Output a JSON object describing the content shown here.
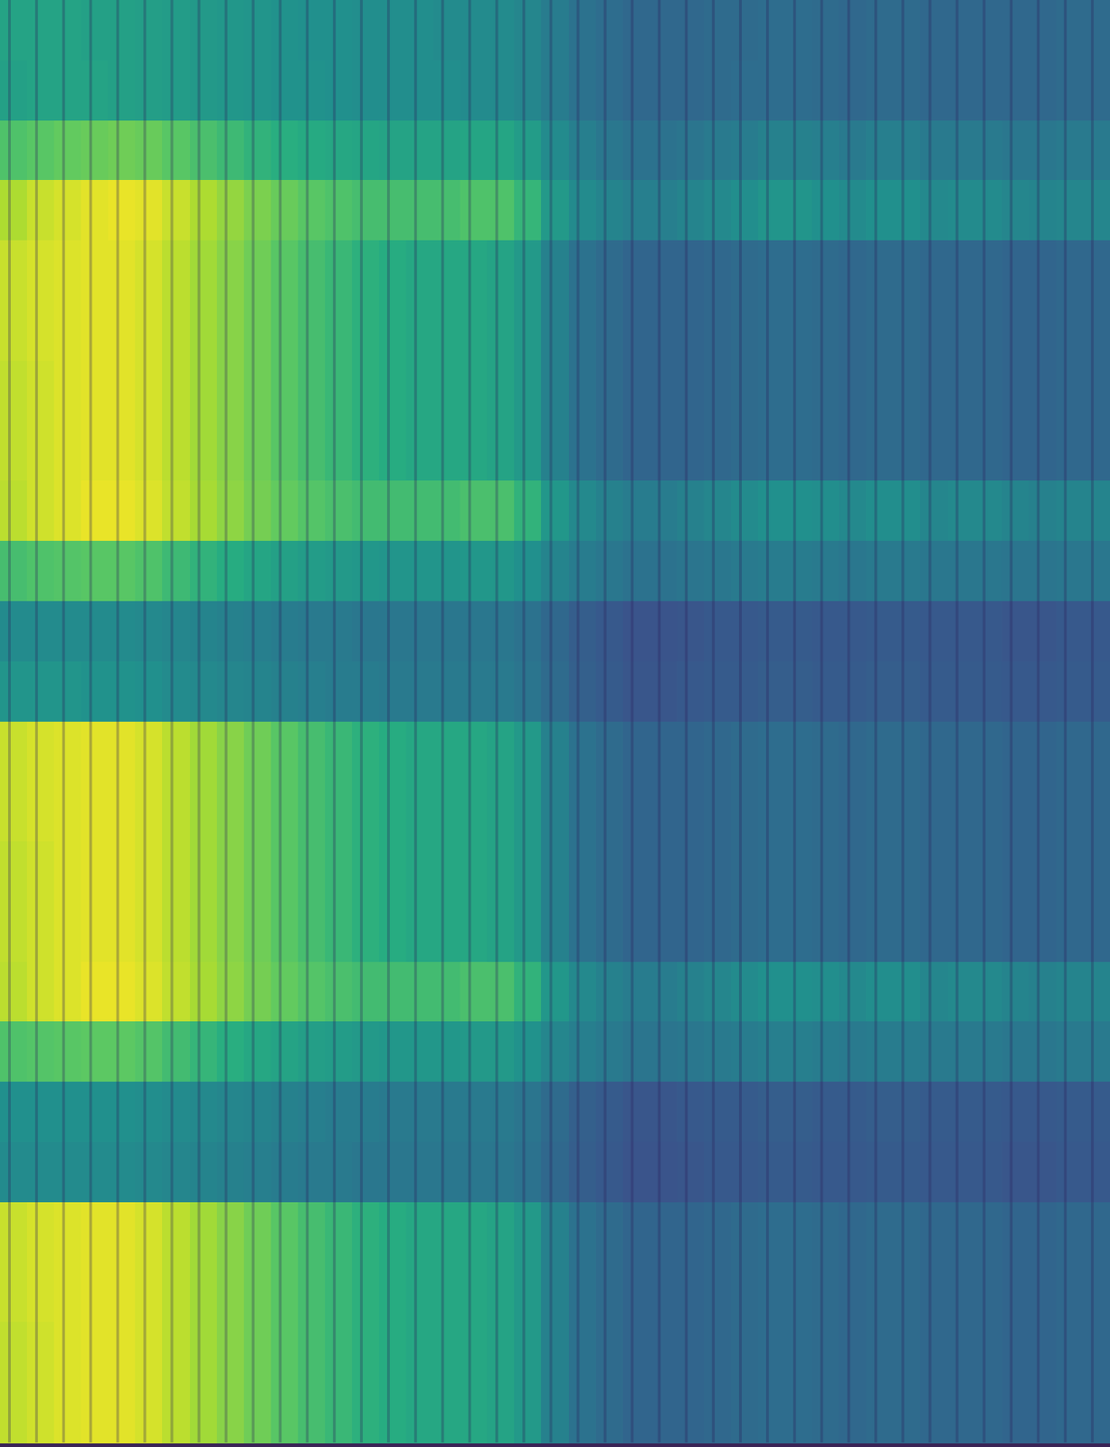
{
  "chart_data": {
    "type": "heatmap",
    "color": "viridis",
    "color_range": [
      0,
      100
    ],
    "tick_labels": false,
    "grid": false,
    "cells": [
      [
        58,
        58,
        58,
        57,
        57,
        56,
        55,
        54,
        53,
        52,
        51,
        50,
        50,
        49,
        49,
        49,
        48,
        48,
        48,
        46,
        42,
        38,
        36,
        34,
        34,
        34,
        35,
        35,
        36,
        36,
        35,
        34,
        35,
        35,
        34,
        34,
        34,
        34,
        34,
        35,
        35
      ],
      [
        57,
        58,
        58,
        58,
        57,
        56,
        55,
        54,
        53,
        52,
        51,
        51,
        50,
        49,
        49,
        49,
        49,
        48,
        48,
        46,
        42,
        38,
        36,
        34,
        34,
        34,
        35,
        36,
        36,
        36,
        35,
        34,
        35,
        35,
        34,
        34,
        34,
        34,
        34,
        35,
        35
      ],
      [
        72,
        74,
        76,
        77,
        78,
        77,
        74,
        71,
        68,
        65,
        63,
        61,
        60,
        59,
        58,
        58,
        58,
        59,
        59,
        55,
        48,
        43,
        40,
        38,
        38,
        39,
        41,
        42,
        44,
        44,
        43,
        41,
        43,
        43,
        41,
        41,
        41,
        40,
        40,
        41,
        41
      ],
      [
        88,
        92,
        94,
        96,
        97,
        96,
        92,
        88,
        84,
        80,
        77,
        74,
        72,
        70,
        70,
        70,
        70,
        72,
        72,
        66,
        54,
        48,
        45,
        43,
        43,
        45,
        47,
        49,
        52,
        52,
        50,
        48,
        50,
        50,
        47,
        48,
        48,
        46,
        45,
        46,
        46
      ],
      [
        92,
        94,
        95,
        96,
        96,
        94,
        90,
        86,
        82,
        78,
        74,
        70,
        67,
        64,
        62,
        60,
        60,
        60,
        58,
        54,
        44,
        38,
        35,
        33,
        33,
        33,
        34,
        35,
        36,
        36,
        35,
        34,
        35,
        35,
        34,
        34,
        34,
        33,
        33,
        34,
        34
      ],
      [
        92,
        94,
        95,
        96,
        96,
        94,
        90,
        86,
        82,
        78,
        74,
        70,
        67,
        64,
        62,
        60,
        60,
        60,
        58,
        54,
        44,
        38,
        35,
        33,
        33,
        33,
        34,
        35,
        36,
        36,
        35,
        34,
        35,
        35,
        34,
        34,
        34,
        33,
        33,
        34,
        34
      ],
      [
        91,
        93,
        95,
        96,
        96,
        94,
        90,
        86,
        82,
        78,
        74,
        70,
        67,
        64,
        62,
        60,
        60,
        60,
        58,
        54,
        44,
        38,
        35,
        33,
        33,
        33,
        34,
        35,
        36,
        36,
        35,
        34,
        35,
        35,
        34,
        34,
        34,
        33,
        33,
        34,
        34
      ],
      [
        91,
        93,
        95,
        96,
        96,
        94,
        90,
        86,
        82,
        78,
        74,
        70,
        67,
        64,
        62,
        60,
        60,
        60,
        58,
        54,
        44,
        38,
        35,
        33,
        33,
        33,
        34,
        35,
        36,
        36,
        35,
        34,
        35,
        35,
        34,
        34,
        34,
        33,
        33,
        34,
        34
      ],
      [
        90,
        93,
        95,
        97,
        97,
        95,
        91,
        87,
        83,
        79,
        76,
        73,
        71,
        69,
        69,
        69,
        69,
        71,
        71,
        65,
        53,
        47,
        44,
        42,
        42,
        44,
        46,
        48,
        50,
        50,
        49,
        47,
        49,
        49,
        46,
        47,
        47,
        45,
        44,
        45,
        45
      ],
      [
        70,
        72,
        73,
        74,
        74,
        72,
        68,
        65,
        62,
        59,
        57,
        55,
        54,
        53,
        52,
        52,
        52,
        53,
        53,
        50,
        45,
        42,
        40,
        38,
        38,
        39,
        40,
        41,
        42,
        42,
        41,
        40,
        41,
        41,
        40,
        40,
        40,
        39,
        39,
        40,
        40
      ],
      [
        48,
        48,
        48,
        48,
        48,
        47,
        46,
        45,
        44,
        43,
        42,
        41,
        41,
        40,
        40,
        40,
        40,
        40,
        40,
        38,
        34,
        30,
        28,
        26,
        26,
        27,
        28,
        28,
        29,
        29,
        28,
        28,
        29,
        29,
        28,
        28,
        28,
        27,
        27,
        28,
        28
      ],
      [
        52,
        52,
        52,
        51,
        51,
        50,
        48,
        47,
        46,
        45,
        44,
        43,
        42,
        42,
        41,
        41,
        41,
        41,
        41,
        39,
        35,
        31,
        29,
        27,
        27,
        28,
        29,
        29,
        30,
        30,
        29,
        29,
        30,
        30,
        29,
        29,
        29,
        28,
        28,
        29,
        29
      ],
      [
        92,
        94,
        95,
        96,
        96,
        94,
        90,
        86,
        82,
        78,
        74,
        70,
        67,
        64,
        62,
        60,
        60,
        60,
        58,
        54,
        44,
        38,
        35,
        33,
        33,
        33,
        34,
        35,
        36,
        36,
        35,
        34,
        35,
        35,
        34,
        34,
        34,
        33,
        33,
        34,
        34
      ],
      [
        92,
        94,
        95,
        96,
        96,
        94,
        90,
        86,
        82,
        78,
        74,
        70,
        67,
        64,
        62,
        60,
        60,
        60,
        58,
        54,
        44,
        38,
        35,
        33,
        33,
        33,
        34,
        35,
        36,
        36,
        35,
        34,
        35,
        35,
        34,
        34,
        34,
        33,
        33,
        34,
        34
      ],
      [
        91,
        93,
        95,
        96,
        96,
        94,
        90,
        86,
        82,
        78,
        74,
        70,
        67,
        64,
        62,
        60,
        60,
        60,
        58,
        54,
        44,
        38,
        35,
        33,
        33,
        33,
        34,
        35,
        36,
        36,
        35,
        34,
        35,
        35,
        34,
        34,
        34,
        33,
        33,
        34,
        34
      ],
      [
        91,
        93,
        95,
        96,
        96,
        94,
        90,
        86,
        82,
        78,
        74,
        70,
        67,
        64,
        62,
        60,
        60,
        60,
        58,
        54,
        44,
        38,
        35,
        33,
        33,
        33,
        34,
        35,
        36,
        36,
        35,
        34,
        35,
        35,
        34,
        34,
        34,
        33,
        33,
        34,
        34
      ],
      [
        90,
        93,
        95,
        97,
        97,
        95,
        91,
        87,
        83,
        79,
        76,
        73,
        71,
        69,
        69,
        69,
        69,
        71,
        71,
        65,
        53,
        47,
        44,
        42,
        42,
        44,
        46,
        48,
        50,
        50,
        49,
        47,
        49,
        49,
        46,
        47,
        47,
        45,
        44,
        45,
        45
      ],
      [
        72,
        73,
        74,
        75,
        75,
        73,
        69,
        66,
        63,
        60,
        58,
        56,
        55,
        54,
        53,
        53,
        53,
        54,
        54,
        51,
        46,
        43,
        41,
        39,
        39,
        40,
        41,
        42,
        43,
        43,
        42,
        41,
        42,
        42,
        41,
        41,
        41,
        40,
        40,
        41,
        41
      ],
      [
        50,
        50,
        50,
        50,
        50,
        49,
        48,
        47,
        46,
        45,
        44,
        43,
        42,
        42,
        41,
        41,
        41,
        41,
        41,
        39,
        35,
        31,
        29,
        27,
        27,
        28,
        29,
        29,
        30,
        30,
        29,
        29,
        30,
        30,
        29,
        29,
        29,
        28,
        28,
        29,
        29
      ],
      [
        48,
        48,
        48,
        48,
        48,
        47,
        46,
        45,
        44,
        43,
        42,
        41,
        41,
        40,
        40,
        40,
        40,
        40,
        40,
        38,
        34,
        30,
        28,
        26,
        26,
        27,
        28,
        28,
        29,
        29,
        28,
        28,
        29,
        29,
        28,
        28,
        28,
        27,
        27,
        28,
        28
      ],
      [
        92,
        94,
        95,
        96,
        96,
        94,
        90,
        86,
        82,
        78,
        74,
        70,
        67,
        64,
        62,
        60,
        60,
        60,
        58,
        54,
        44,
        38,
        35,
        33,
        33,
        33,
        34,
        35,
        36,
        36,
        35,
        34,
        35,
        35,
        34,
        34,
        34,
        33,
        33,
        34,
        34
      ],
      [
        92,
        94,
        95,
        96,
        96,
        94,
        90,
        86,
        82,
        78,
        74,
        70,
        67,
        64,
        62,
        60,
        60,
        60,
        58,
        54,
        44,
        38,
        35,
        33,
        33,
        33,
        34,
        35,
        36,
        36,
        35,
        34,
        35,
        35,
        34,
        34,
        34,
        33,
        33,
        34,
        34
      ],
      [
        91,
        93,
        95,
        96,
        96,
        94,
        90,
        86,
        82,
        78,
        74,
        70,
        67,
        64,
        62,
        60,
        60,
        60,
        58,
        54,
        44,
        38,
        35,
        33,
        33,
        33,
        34,
        35,
        36,
        36,
        35,
        34,
        35,
        35,
        34,
        34,
        34,
        33,
        33,
        34,
        34
      ],
      [
        91,
        93,
        95,
        96,
        96,
        94,
        90,
        86,
        82,
        78,
        74,
        70,
        67,
        64,
        62,
        60,
        60,
        60,
        58,
        54,
        44,
        38,
        35,
        33,
        33,
        33,
        34,
        35,
        36,
        36,
        35,
        34,
        35,
        35,
        34,
        34,
        34,
        33,
        33,
        34,
        34
      ]
    ]
  }
}
